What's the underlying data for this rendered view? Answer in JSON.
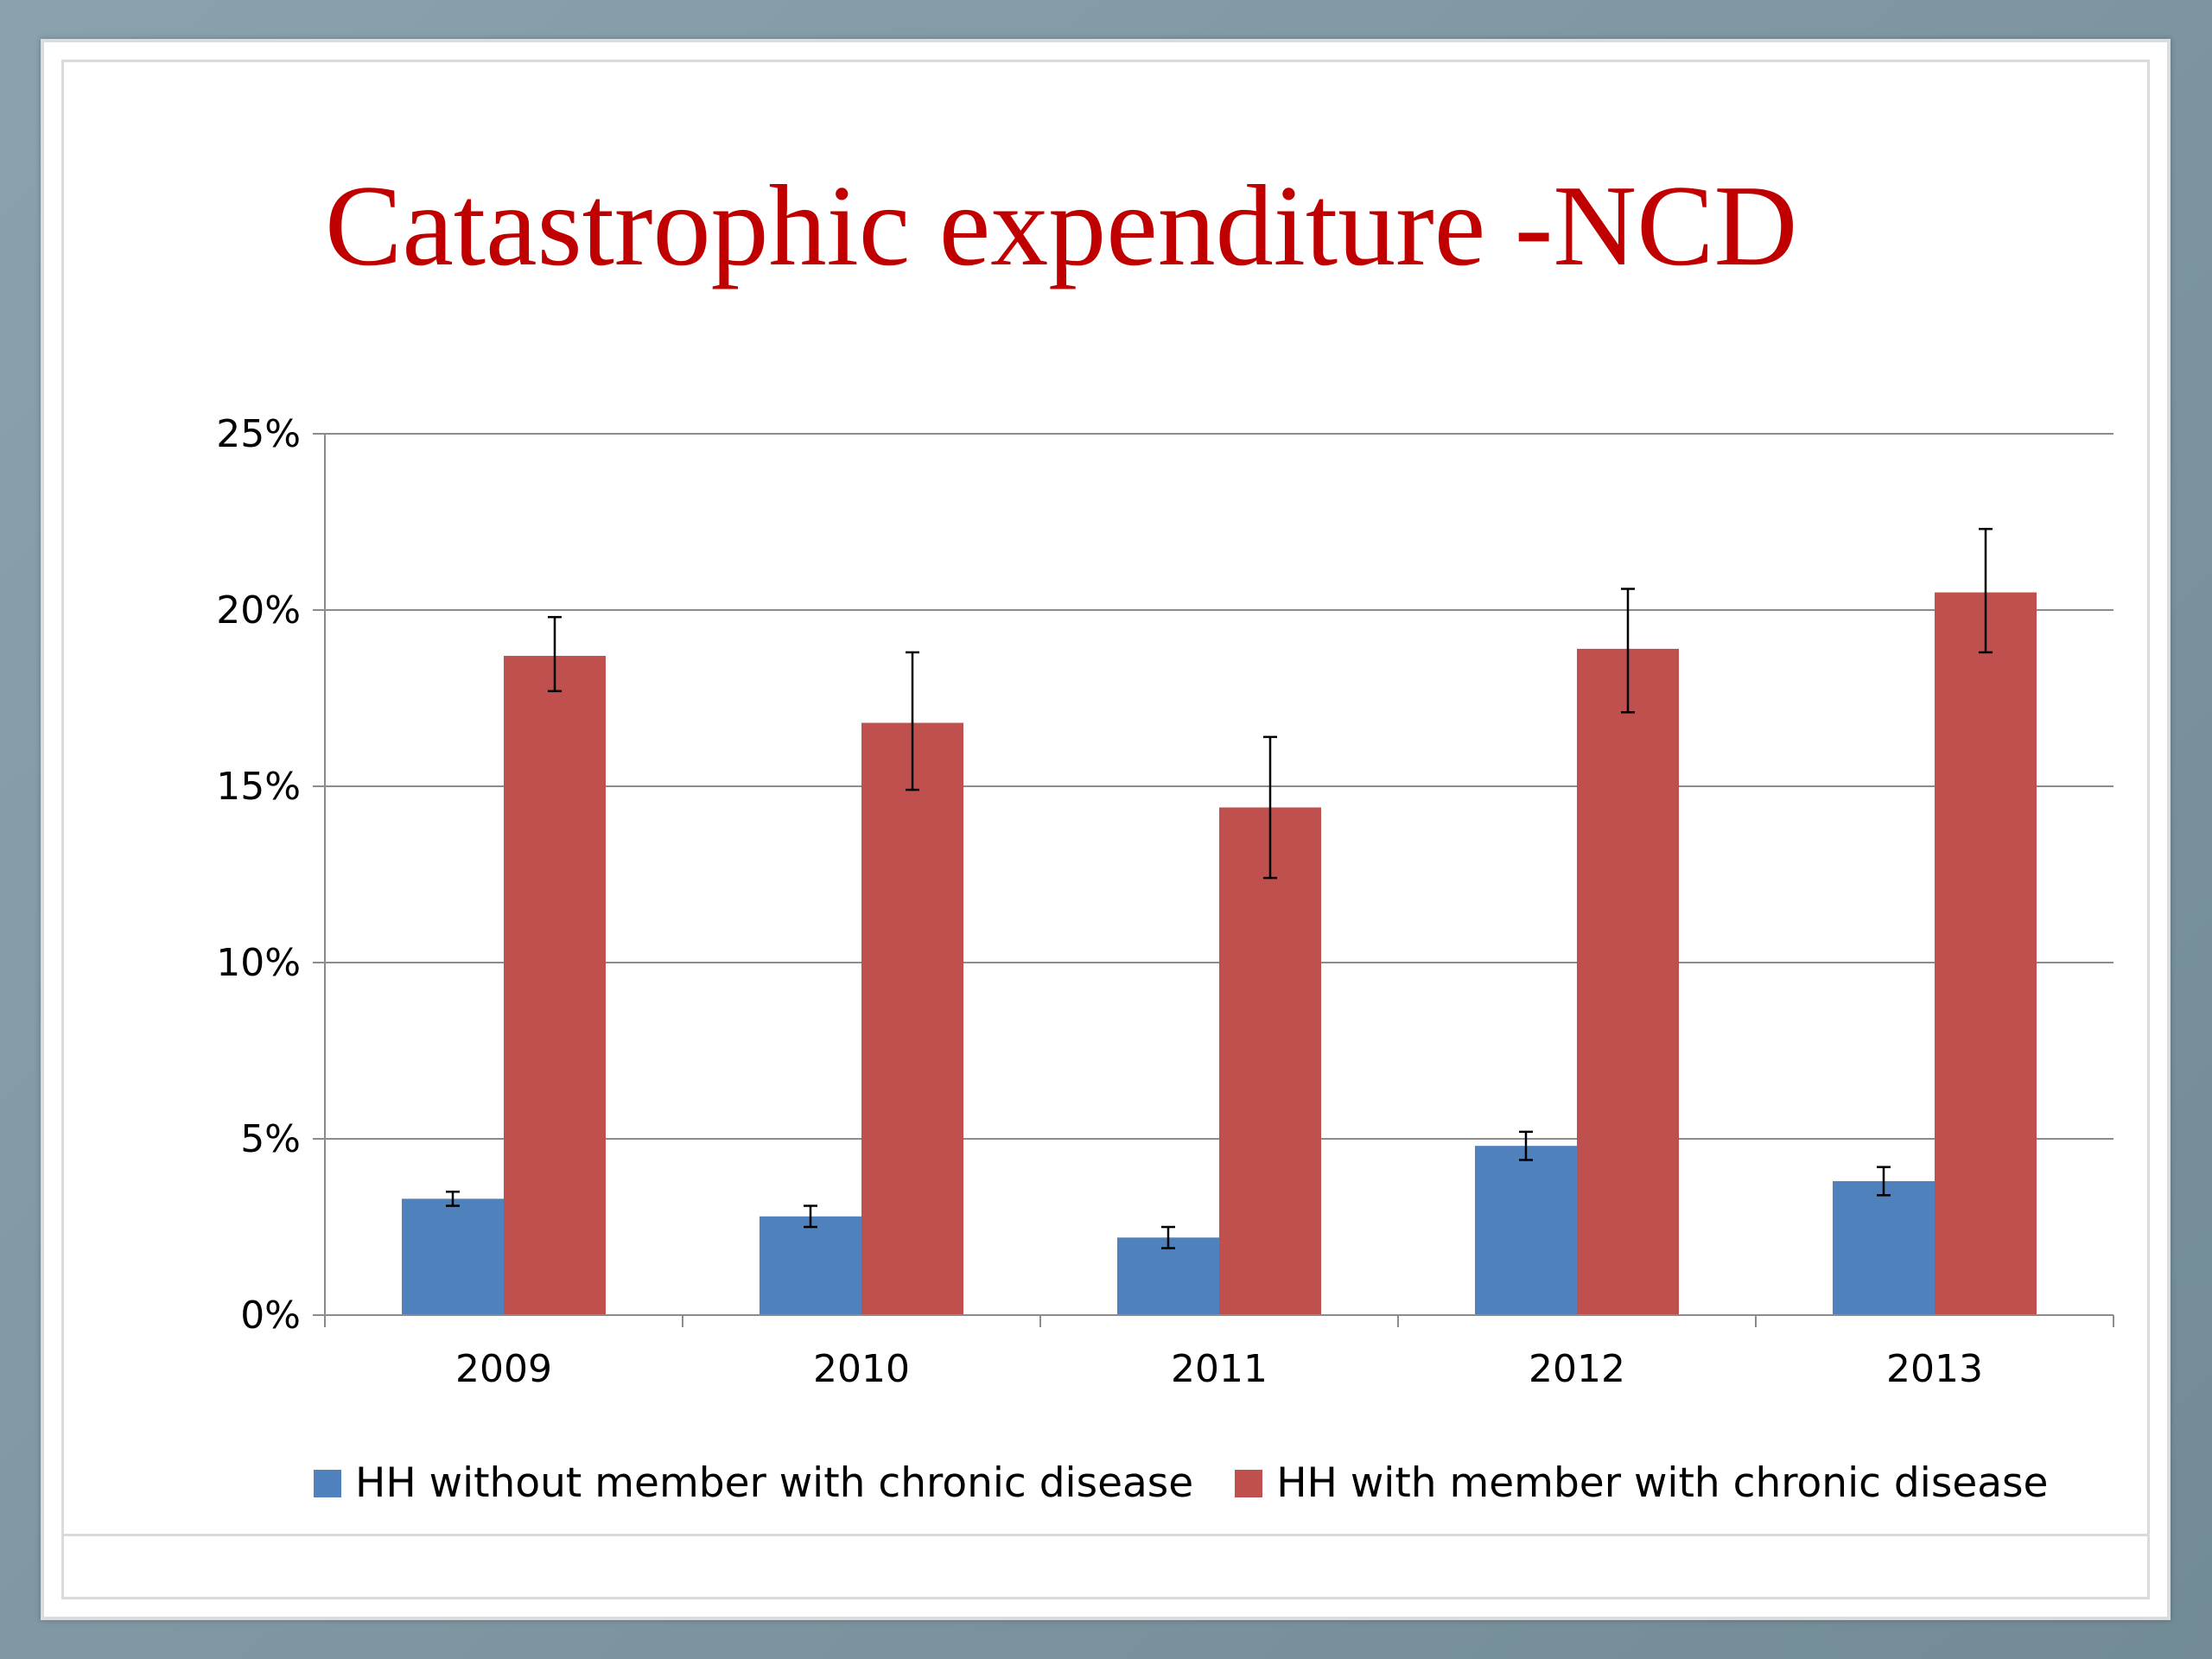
{
  "slide": {
    "title": "Catastrophic expenditure -NCD"
  },
  "colors": {
    "title": "#c00000",
    "series_without": "#4f81bd",
    "series_with": "#c0504d",
    "gridline": "#8c8c8c"
  },
  "chart_data": {
    "type": "bar",
    "title": "",
    "xlabel": "",
    "ylabel": "",
    "categories": [
      "2009",
      "2010",
      "2011",
      "2012",
      "2013"
    ],
    "y_tick_labels": [
      "0%",
      "5%",
      "10%",
      "15%",
      "20%",
      "25%"
    ],
    "ylim": [
      0,
      25
    ],
    "y_unit": "%",
    "grid": true,
    "legend_position": "bottom",
    "series": [
      {
        "name": "HH without member with chronic disease",
        "color": "#4f81bd",
        "values": [
          3.3,
          2.8,
          2.2,
          4.8,
          3.8
        ],
        "error_low": [
          3.1,
          2.5,
          1.9,
          4.4,
          3.4
        ],
        "error_high": [
          3.5,
          3.1,
          2.5,
          5.2,
          4.2
        ]
      },
      {
        "name": "HH with member with chronic disease",
        "color": "#c0504d",
        "values": [
          18.7,
          16.8,
          14.4,
          18.9,
          20.5
        ],
        "error_low": [
          17.7,
          14.9,
          12.4,
          17.1,
          18.8
        ],
        "error_high": [
          19.8,
          18.8,
          16.4,
          20.6,
          22.3
        ]
      }
    ]
  }
}
